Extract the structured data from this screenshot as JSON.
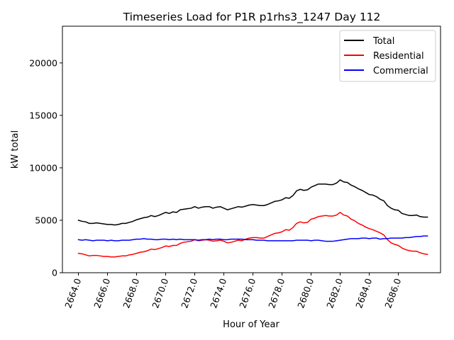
{
  "chart_data": {
    "type": "line",
    "title": "Timeseries Load for P1R p1rhs3_1247  Day 112",
    "xlabel": "Hour of Year",
    "ylabel": "kW total",
    "xlim": [
      2662.9,
      2688.9
    ],
    "ylim": [
      0,
      23500
    ],
    "xticks": [
      2664,
      2666,
      2668,
      2670,
      2672,
      2674,
      2676,
      2678,
      2680,
      2682,
      2684,
      2686
    ],
    "xtick_labels": [
      "2664.0",
      "2666.0",
      "2668.0",
      "2670.0",
      "2672.0",
      "2674.0",
      "2676.0",
      "2678.0",
      "2680.0",
      "2682.0",
      "2684.0",
      "2686.0"
    ],
    "yticks": [
      0,
      5000,
      10000,
      15000,
      20000
    ],
    "ytick_labels": [
      "0",
      "5000",
      "10000",
      "15000",
      "20000"
    ],
    "legend_position": "top-right",
    "x_start": 2664.0,
    "x_step": 0.25,
    "series": [
      {
        "name": "Total",
        "color": "#000000",
        "values": [
          5000,
          4900,
          4850,
          4700,
          4700,
          4750,
          4700,
          4650,
          4600,
          4600,
          4550,
          4600,
          4700,
          4700,
          4800,
          4900,
          5050,
          5150,
          5250,
          5300,
          5450,
          5350,
          5450,
          5600,
          5750,
          5650,
          5800,
          5750,
          6000,
          6050,
          6100,
          6150,
          6300,
          6150,
          6250,
          6300,
          6300,
          6150,
          6250,
          6300,
          6150,
          6000,
          6100,
          6200,
          6300,
          6250,
          6350,
          6450,
          6500,
          6450,
          6400,
          6400,
          6500,
          6650,
          6800,
          6850,
          6950,
          7150,
          7100,
          7350,
          7800,
          7950,
          7850,
          7900,
          8150,
          8300,
          8450,
          8450,
          8450,
          8400,
          8400,
          8550,
          8850,
          8650,
          8600,
          8350,
          8200,
          8000,
          7850,
          7650,
          7450,
          7400,
          7250,
          7000,
          6850,
          6400,
          6150,
          6000,
          5950,
          5650,
          5550,
          5450,
          5450,
          5500,
          5350,
          5300,
          5300
        ]
      },
      {
        "name": "Residential",
        "color": "#ff0000",
        "values": [
          1850,
          1800,
          1700,
          1600,
          1650,
          1650,
          1600,
          1550,
          1550,
          1500,
          1500,
          1550,
          1600,
          1600,
          1700,
          1750,
          1850,
          1950,
          2000,
          2100,
          2250,
          2200,
          2300,
          2400,
          2550,
          2500,
          2600,
          2600,
          2800,
          2900,
          2950,
          3000,
          3150,
          3050,
          3100,
          3150,
          3100,
          3000,
          3050,
          3100,
          3000,
          2850,
          2900,
          3000,
          3100,
          3050,
          3200,
          3300,
          3350,
          3350,
          3300,
          3300,
          3450,
          3600,
          3750,
          3800,
          3900,
          4100,
          4050,
          4300,
          4700,
          4850,
          4750,
          4800,
          5100,
          5200,
          5350,
          5400,
          5450,
          5400,
          5400,
          5500,
          5750,
          5500,
          5400,
          5100,
          4950,
          4700,
          4550,
          4350,
          4200,
          4100,
          3950,
          3800,
          3600,
          3150,
          2850,
          2700,
          2600,
          2350,
          2200,
          2100,
          2050,
          2050,
          1900,
          1800,
          1750
        ]
      },
      {
        "name": "Commercial",
        "color": "#0000ff",
        "values": [
          3150,
          3100,
          3150,
          3100,
          3050,
          3100,
          3100,
          3100,
          3050,
          3100,
          3050,
          3050,
          3100,
          3100,
          3100,
          3150,
          3200,
          3200,
          3250,
          3200,
          3200,
          3150,
          3150,
          3200,
          3200,
          3150,
          3200,
          3150,
          3200,
          3150,
          3150,
          3150,
          3150,
          3100,
          3150,
          3150,
          3200,
          3150,
          3200,
          3200,
          3150,
          3150,
          3200,
          3200,
          3200,
          3200,
          3150,
          3150,
          3150,
          3100,
          3100,
          3100,
          3050,
          3050,
          3050,
          3050,
          3050,
          3050,
          3050,
          3050,
          3100,
          3100,
          3100,
          3100,
          3050,
          3100,
          3100,
          3050,
          3000,
          3000,
          3000,
          3050,
          3100,
          3150,
          3200,
          3250,
          3250,
          3250,
          3300,
          3300,
          3250,
          3300,
          3300,
          3200,
          3250,
          3250,
          3300,
          3300,
          3300,
          3300,
          3350,
          3350,
          3400,
          3450,
          3450,
          3500,
          3500
        ]
      }
    ]
  }
}
